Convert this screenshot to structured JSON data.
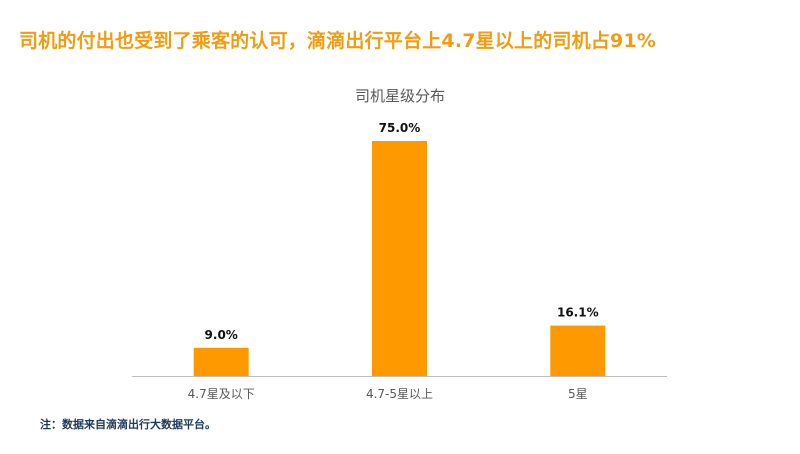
{
  "headline": "司机的付出也受到了乘客的认可，滴滴出行平台上4.7星以上的司机占91%",
  "footnote": "注：数据来自滴滴出行大数据平台。",
  "colors": {
    "accent": "#f39c12",
    "bar": "#ff9900",
    "axis": "#bfbfbf",
    "title": "#595959",
    "label": "#595959",
    "value_label": "#111111",
    "footnote": "#1f3a5a"
  },
  "chart_data": {
    "type": "bar",
    "title": "司机星级分布",
    "xlabel": "",
    "ylabel": "",
    "categories": [
      "4.7星及以下",
      "4.7-5星以上",
      "5星"
    ],
    "values": [
      9.0,
      75.0,
      16.1
    ],
    "value_labels": [
      "9.0%",
      "75.0%",
      "16.1%"
    ],
    "ylim": [
      0,
      75
    ],
    "grid": false,
    "legend": "none"
  }
}
